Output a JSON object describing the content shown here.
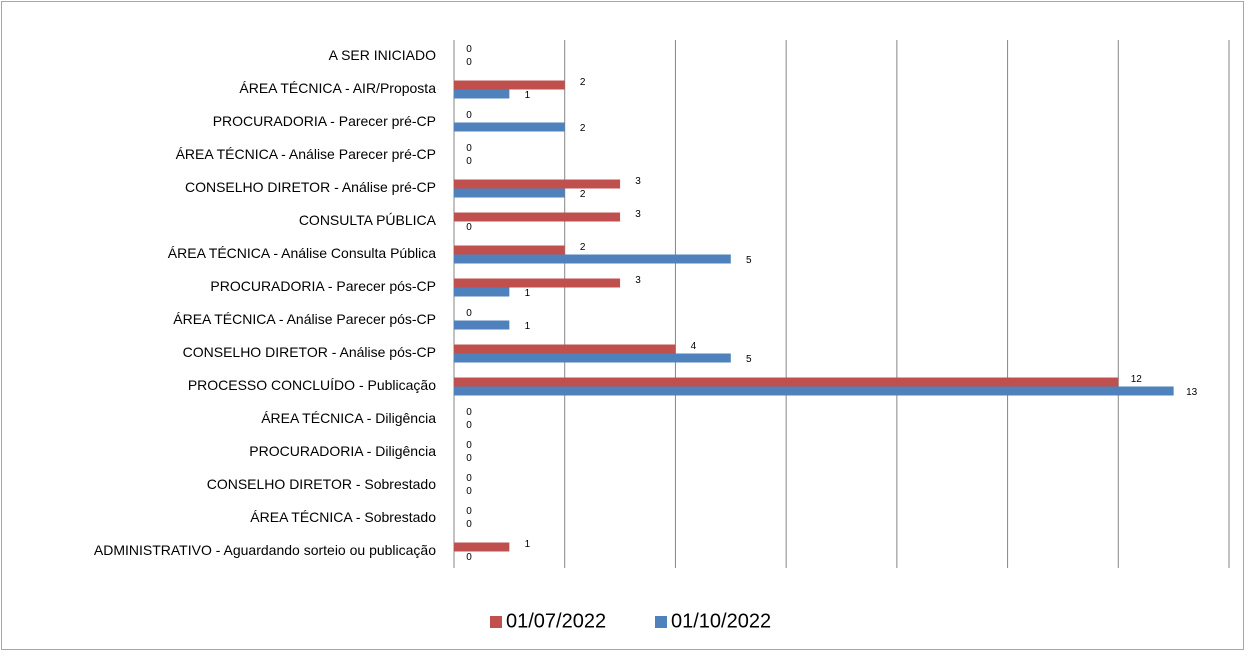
{
  "chart_data": {
    "type": "bar",
    "orientation": "horizontal",
    "categories": [
      "A SER INICIADO",
      "ÁREA TÉCNICA - AIR/Proposta",
      "PROCURADORIA - Parecer pré-CP",
      "ÁREA TÉCNICA - Análise Parecer pré-CP",
      "CONSELHO DIRETOR - Análise pré-CP",
      "CONSULTA PÚBLICA",
      "ÁREA TÉCNICA - Análise Consulta Pública",
      "PROCURADORIA - Parecer pós-CP",
      "ÁREA TÉCNICA - Análise Parecer pós-CP",
      "CONSELHO DIRETOR - Análise pós-CP",
      "PROCESSO CONCLUÍDO - Publicação",
      "ÁREA TÉCNICA - Diligência",
      "PROCURADORIA - Diligência",
      "CONSELHO DIRETOR - Sobrestado",
      "ÁREA TÉCNICA - Sobrestado",
      "ADMINISTRATIVO - Aguardando sorteio ou publicação"
    ],
    "series": [
      {
        "name": "01/07/2022",
        "color": "#c0504d",
        "values": [
          0,
          2,
          0,
          0,
          3,
          3,
          2,
          3,
          0,
          4,
          12,
          0,
          0,
          0,
          0,
          1
        ]
      },
      {
        "name": "01/10/2022",
        "color": "#4f81bd",
        "values": [
          0,
          1,
          2,
          0,
          2,
          0,
          5,
          1,
          1,
          5,
          13,
          0,
          0,
          0,
          0,
          0
        ]
      }
    ],
    "xlim": [
      0,
      14
    ],
    "xticks": [
      0,
      2,
      4,
      6,
      8,
      10,
      12,
      14
    ],
    "grid": true,
    "legend": "bottom"
  }
}
